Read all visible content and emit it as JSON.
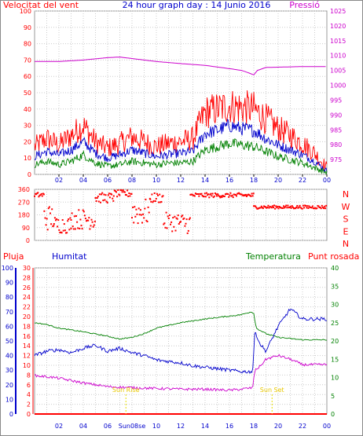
{
  "chart_data": [
    {
      "type": "line",
      "panel": "wind-pressure",
      "title": "24 hour graph day : 14 Junio 2016",
      "left_axis_label": "Velocitat del vent",
      "right_axis_label": "Pressió",
      "x_ticks": [
        "02",
        "04",
        "06",
        "08",
        "10",
        "12",
        "14",
        "16",
        "18",
        "20",
        "22",
        "00"
      ],
      "x_range": [
        0,
        24
      ],
      "left_ylim": [
        0,
        100
      ],
      "left_ticks": [
        "0",
        "10",
        "20",
        "30",
        "40",
        "50",
        "60",
        "70",
        "80",
        "90",
        "100"
      ],
      "right_ylim": [
        970,
        1025
      ],
      "right_ticks": [
        "975",
        "980",
        "985",
        "990",
        "995",
        "1000",
        "1005",
        "1010",
        "1015",
        "1020",
        "1025"
      ],
      "grid": true,
      "series": [
        {
          "role": "gust",
          "axis": "left",
          "color": "#ff0000",
          "x": [
            0,
            1,
            2,
            3,
            4,
            5,
            6,
            7,
            8,
            9,
            10,
            11,
            12,
            13,
            14,
            15,
            16,
            17,
            18,
            19,
            20,
            21,
            22,
            23,
            24
          ],
          "y": [
            17,
            22,
            18,
            24,
            30,
            20,
            16,
            19,
            23,
            20,
            17,
            19,
            20,
            22,
            38,
            40,
            42,
            41,
            40,
            34,
            28,
            24,
            19,
            13,
            4
          ]
        },
        {
          "role": "average",
          "axis": "left",
          "color": "#0000cc",
          "x": [
            0,
            1,
            2,
            3,
            4,
            5,
            6,
            7,
            8,
            9,
            10,
            11,
            12,
            13,
            14,
            15,
            16,
            17,
            18,
            19,
            20,
            21,
            22,
            23,
            24
          ],
          "y": [
            11,
            14,
            12,
            15,
            20,
            13,
            10,
            12,
            15,
            13,
            11,
            12,
            13,
            14,
            25,
            27,
            30,
            28,
            27,
            22,
            18,
            15,
            12,
            8,
            2
          ]
        },
        {
          "role": "minimum",
          "axis": "left",
          "color": "#008000",
          "x": [
            0,
            1,
            2,
            3,
            4,
            5,
            6,
            7,
            8,
            9,
            10,
            11,
            12,
            13,
            14,
            15,
            16,
            17,
            18,
            19,
            20,
            21,
            22,
            23,
            24
          ],
          "y": [
            6,
            8,
            6,
            8,
            12,
            7,
            5,
            6,
            8,
            7,
            6,
            7,
            7,
            8,
            15,
            17,
            19,
            18,
            17,
            14,
            11,
            9,
            7,
            4,
            1
          ]
        },
        {
          "role": "pressure",
          "axis": "right",
          "color": "#cc00cc",
          "x": [
            0,
            2,
            4,
            6,
            7,
            8,
            10,
            12,
            14,
            16,
            17,
            17.5,
            18,
            18.3,
            19,
            22,
            24
          ],
          "y": [
            1008,
            1008,
            1008.5,
            1009.3,
            1009.5,
            1009,
            1008,
            1007.3,
            1006.7,
            1005.6,
            1005,
            1004.3,
            1003.5,
            1005,
            1006,
            1006.3,
            1006.3
          ]
        }
      ]
    },
    {
      "type": "scatter",
      "panel": "wind-direction",
      "right_axis_letters": [
        "N",
        "W",
        "S",
        "E",
        "N"
      ],
      "y_ticks": [
        "360",
        "270",
        "180",
        "90",
        "0"
      ],
      "ylim": [
        0,
        360
      ],
      "x_range": [
        0,
        24
      ],
      "grid": true,
      "series": [
        {
          "role": "direction",
          "color": "#ff0000",
          "segments": [
            {
              "x_from": 0,
              "x_to": 0.8,
              "center": 320,
              "spread": 18
            },
            {
              "x_from": 0.8,
              "x_to": 1.6,
              "center": 160,
              "spread": 150
            },
            {
              "x_from": 1.6,
              "x_to": 3.0,
              "center": 110,
              "spread": 100
            },
            {
              "x_from": 3.0,
              "x_to": 5.0,
              "center": 150,
              "spread": 120
            },
            {
              "x_from": 5.0,
              "x_to": 6.5,
              "center": 300,
              "spread": 60
            },
            {
              "x_from": 6.5,
              "x_to": 8.0,
              "center": 330,
              "spread": 25
            },
            {
              "x_from": 8.0,
              "x_to": 9.5,
              "center": 200,
              "spread": 160
            },
            {
              "x_from": 9.5,
              "x_to": 10.6,
              "center": 300,
              "spread": 60
            },
            {
              "x_from": 10.6,
              "x_to": 12.0,
              "center": 130,
              "spread": 110
            },
            {
              "x_from": 12.0,
              "x_to": 12.8,
              "center": 120,
              "spread": 120
            },
            {
              "x_from": 12.8,
              "x_to": 18.0,
              "center": 318,
              "spread": 16
            },
            {
              "x_from": 18.0,
              "x_to": 24.0,
              "center": 235,
              "spread": 12
            }
          ]
        }
      ]
    },
    {
      "type": "line",
      "panel": "rain-humidity-temp-dew",
      "labels": {
        "rain": "Pluja",
        "humidity": "Humitat",
        "temperature": "Temperatura",
        "dewpoint": "Punt rosada"
      },
      "x_ticks": [
        "02",
        "04",
        "06",
        "08",
        "10",
        "12",
        "14",
        "16",
        "18",
        "20",
        "22",
        "00"
      ],
      "x_range": [
        0,
        24
      ],
      "rain_ylim": [
        0,
        30
      ],
      "rain_ticks": [
        "0",
        "2",
        "4",
        "6",
        "8",
        "10",
        "12",
        "14",
        "16",
        "18",
        "20",
        "22",
        "24",
        "26",
        "28",
        "30"
      ],
      "humidity_ylim": [
        0,
        100
      ],
      "humidity_ticks": [
        "0",
        "10",
        "20",
        "30",
        "40",
        "50",
        "60",
        "70",
        "80",
        "90",
        "100"
      ],
      "temp_ylim": [
        0,
        40
      ],
      "temp_ticks": [
        "0",
        "5",
        "10",
        "15",
        "20",
        "25",
        "30",
        "35",
        "40"
      ],
      "annotations": [
        {
          "text": "Sun Rise",
          "x": 7.5
        },
        {
          "text": "Sun Set",
          "x": 19.5
        }
      ],
      "special_x_label": {
        "text": "Sun08se",
        "x": 8
      },
      "grid": true,
      "series": [
        {
          "role": "temperature",
          "axis": "temp",
          "color": "#008000",
          "x": [
            0,
            1,
            2,
            4,
            6,
            7,
            8,
            9,
            10,
            12,
            14,
            16,
            17,
            17.8,
            18,
            18.2,
            19,
            20,
            22,
            24
          ],
          "y": [
            25,
            24.5,
            23.5,
            22.5,
            21.3,
            20.5,
            21,
            22,
            23.5,
            25,
            26,
            26.8,
            27.2,
            28,
            27.5,
            23.5,
            22,
            21,
            20.3,
            20.3
          ]
        },
        {
          "role": "humidity",
          "axis": "humidity",
          "color": "#0000cc",
          "x": [
            0,
            1,
            2,
            3,
            4,
            5,
            6,
            7,
            8,
            9,
            10,
            11,
            12,
            13,
            14,
            15,
            16,
            17,
            17.9,
            18.1,
            18.5,
            19,
            20,
            21,
            22,
            24
          ],
          "y": [
            40,
            43,
            44,
            42,
            45,
            47,
            43,
            45,
            42,
            40,
            37,
            36,
            35,
            33,
            32,
            31,
            30,
            29,
            29,
            57,
            48,
            43,
            60,
            72,
            65,
            65
          ]
        },
        {
          "role": "dewpoint",
          "axis": "temp",
          "color": "#cc00cc",
          "x": [
            0,
            1,
            2,
            4,
            6,
            8,
            10,
            12,
            14,
            16,
            17,
            17.9,
            18.1,
            18.5,
            19,
            20,
            21,
            22,
            24
          ],
          "y": [
            10.5,
            10.2,
            9.8,
            8.5,
            7.5,
            7.2,
            7,
            6.8,
            6.8,
            6.5,
            6.8,
            7.2,
            12,
            13,
            15,
            16,
            15,
            13.5,
            13.5
          ]
        },
        {
          "role": "rain",
          "axis": "rain",
          "color": "#ff0000",
          "x": [
            0,
            24
          ],
          "y": [
            0,
            0
          ]
        }
      ]
    }
  ]
}
